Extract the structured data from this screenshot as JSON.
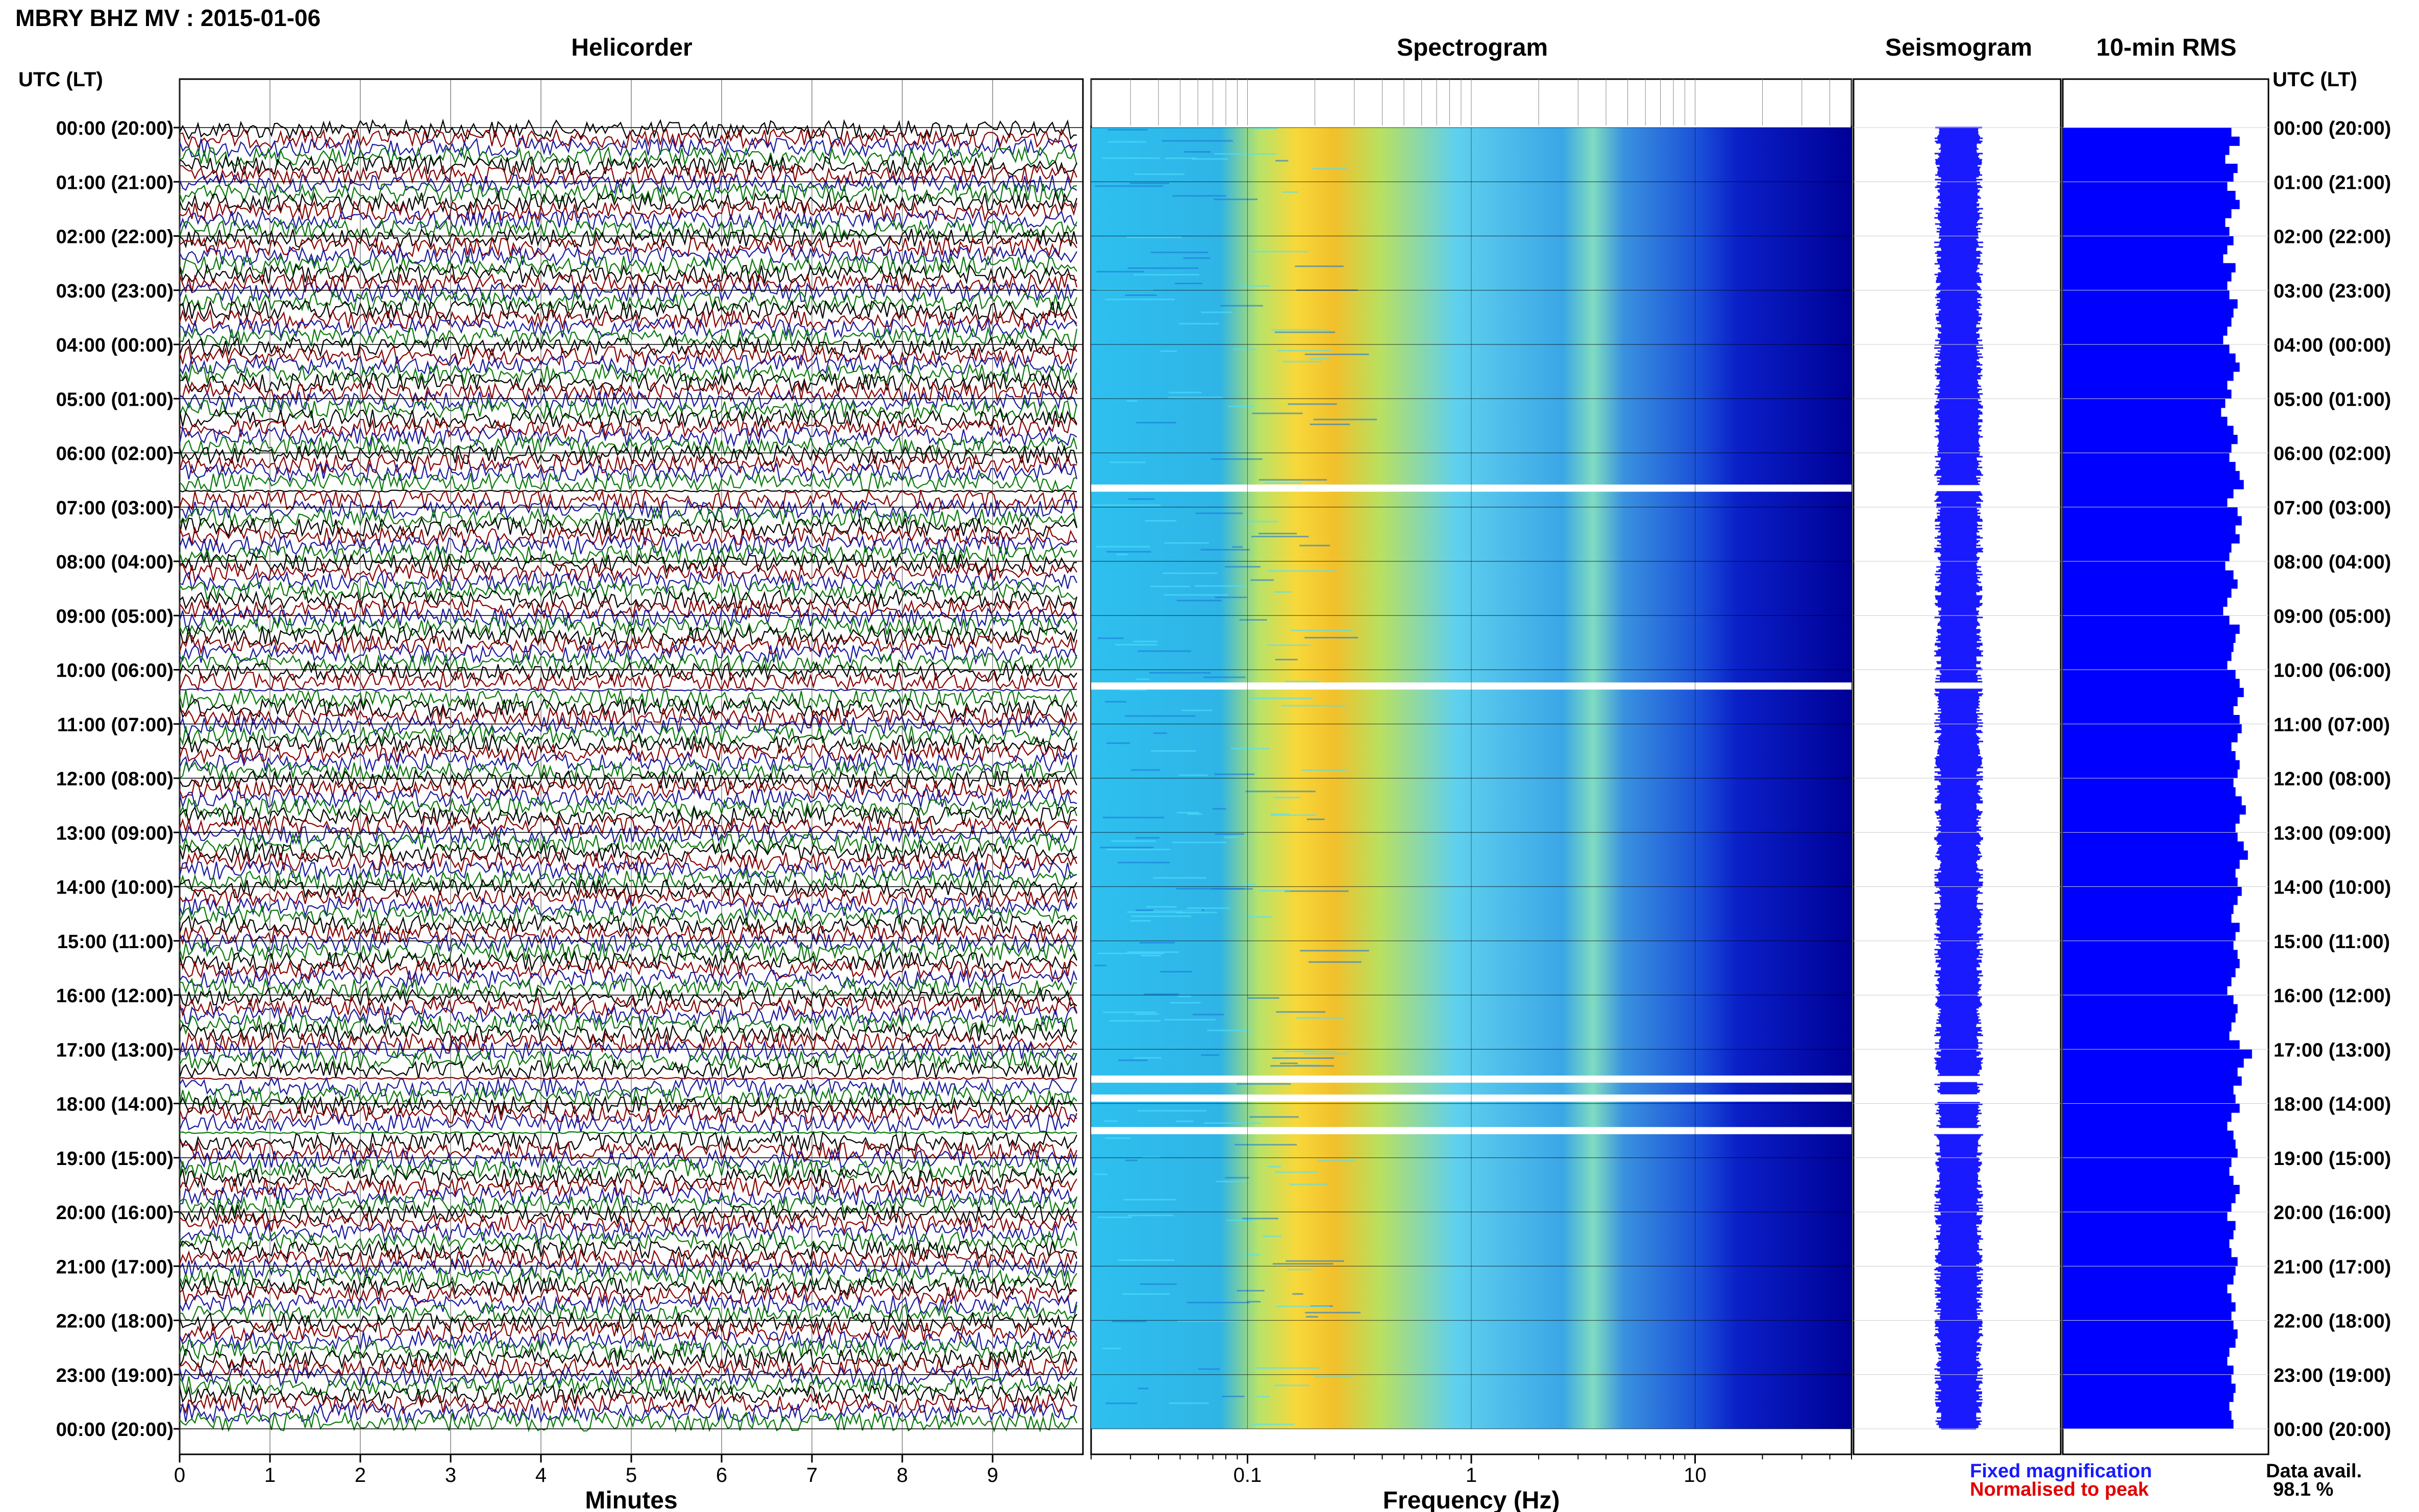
{
  "header": {
    "title": "MBRY BHZ MV : 2015-01-06",
    "utc_label": "UTC (LT)"
  },
  "panels": {
    "helicorder": "Helicorder",
    "spectrogram": "Spectrogram",
    "seismogram": "Seismogram",
    "rms": "10-min RMS"
  },
  "axes": {
    "minutes_label": "Minutes",
    "frequency_label": "Frequency (Hz)",
    "minute_ticks": [
      "0",
      "1",
      "2",
      "3",
      "4",
      "5",
      "6",
      "7",
      "8",
      "9"
    ],
    "frequency_ticks": [
      "0.1",
      "1",
      "10"
    ],
    "hour_labels": [
      "00:00 (20:00)",
      "01:00 (21:00)",
      "02:00 (22:00)",
      "03:00 (23:00)",
      "04:00 (00:00)",
      "05:00 (01:00)",
      "06:00 (02:00)",
      "07:00 (03:00)",
      "08:00 (04:00)",
      "09:00 (05:00)",
      "10:00 (06:00)",
      "11:00 (07:00)",
      "12:00 (08:00)",
      "13:00 (09:00)",
      "14:00 (10:00)",
      "15:00 (11:00)",
      "16:00 (12:00)",
      "17:00 (13:00)",
      "18:00 (14:00)",
      "19:00 (15:00)",
      "20:00 (16:00)",
      "21:00 (17:00)",
      "22:00 (18:00)",
      "23:00 (19:00)",
      "00:00 (20:00)"
    ]
  },
  "legend": {
    "fixed": "Fixed magnification",
    "normalised": "Normalised to peak",
    "fixed_color": "#1a1aff",
    "normalised_color": "#e00000",
    "avail_label": "Data avail.",
    "avail_value": "98.1 %"
  },
  "colors": {
    "trace_cycle": [
      "#000000",
      "#8b0000",
      "#1a1aa0",
      "#0a7a0a"
    ],
    "rms_bar": "#0000ff",
    "seismogram": "#1a1aff"
  },
  "chart_data": {
    "type": "heatmap",
    "helicorder": {
      "xlabel": "Minutes",
      "xlim": [
        0,
        10
      ],
      "line_minutes": 10,
      "lines_per_hour": 6,
      "hours": 24
    },
    "spectrogram": {
      "xlabel": "Frequency (Hz)",
      "x_scale": "log",
      "xlim": [
        0.02,
        50
      ],
      "colormap": "jet"
    },
    "gaps_hours_utc": [
      6.65,
      10.3,
      17.55,
      17.9,
      18.5
    ],
    "rms_10min_rel": [
      0.82,
      0.86,
      0.81,
      0.79,
      0.85,
      0.83,
      0.8,
      0.84,
      0.86,
      0.82,
      0.79,
      0.81,
      0.83,
      0.8,
      0.78,
      0.84,
      0.82,
      0.8,
      0.81,
      0.85,
      0.83,
      0.82,
      0.8,
      0.78,
      0.81,
      0.84,
      0.86,
      0.83,
      0.8,
      0.82,
      0.79,
      0.77,
      0.8,
      0.83,
      0.85,
      0.82,
      0.81,
      0.84,
      0.86,
      0.88,
      0.83,
      0.8,
      0.85,
      0.87,
      0.84,
      0.86,
      0.82,
      0.81,
      0.79,
      0.83,
      0.85,
      0.82,
      0.8,
      0.78,
      0.81,
      0.86,
      0.84,
      0.83,
      0.82,
      0.8,
      0.84,
      0.86,
      0.88,
      0.85,
      0.83,
      0.86,
      0.87,
      0.85,
      0.82,
      0.84,
      0.86,
      0.85,
      0.83,
      0.84,
      0.87,
      0.89,
      0.86,
      0.84,
      0.85,
      0.88,
      0.9,
      0.86,
      0.84,
      0.85,
      0.87,
      0.85,
      0.83,
      0.82,
      0.86,
      0.84,
      0.83,
      0.85,
      0.86,
      0.84,
      0.82,
      0.8,
      0.83,
      0.85,
      0.84,
      0.82,
      0.81,
      0.86,
      0.92,
      0.88,
      0.85,
      0.87,
      0.83,
      0.84,
      0.86,
      0.82,
      0.8,
      0.83,
      0.84,
      0.85,
      0.82,
      0.81,
      0.83,
      0.86,
      0.84,
      0.82,
      0.8,
      0.84,
      0.83,
      0.81,
      0.82,
      0.85,
      0.84,
      0.83,
      0.8,
      0.82,
      0.84,
      0.82,
      0.83,
      0.85,
      0.84,
      0.81,
      0.8,
      0.83,
      0.82,
      0.84,
      0.83,
      0.81,
      0.82,
      0.83
    ]
  }
}
